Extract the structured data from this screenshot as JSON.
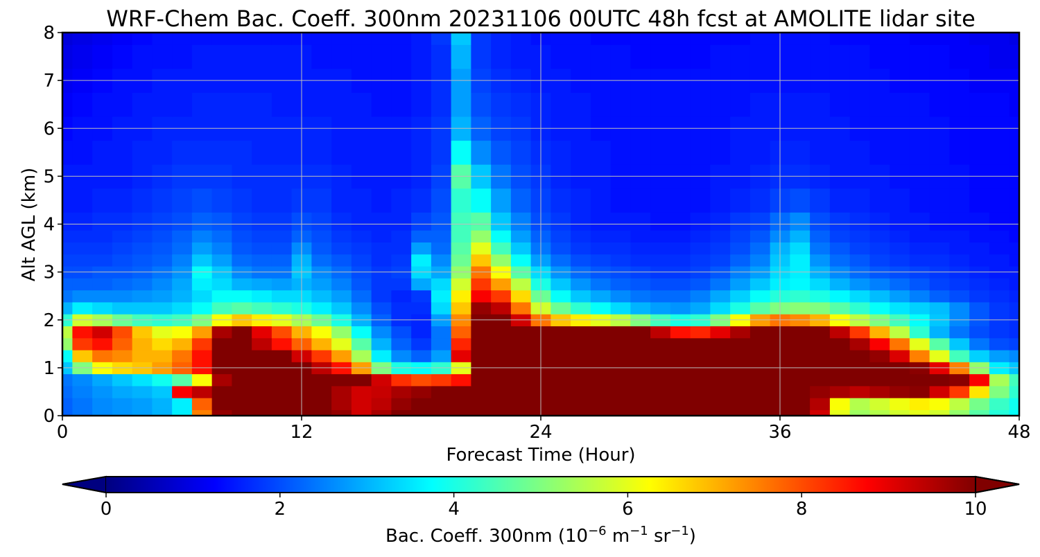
{
  "chart_data": {
    "type": "heatmap",
    "title": "WRF-Chem Bac. Coeff. 300nm  20231106 00UTC 48h fcst at AMOLITE lidar site",
    "xlabel": "Forecast Time (Hour)",
    "ylabel": "Alt AGL (km)",
    "xlim": [
      0,
      48
    ],
    "ylim": [
      0,
      8
    ],
    "xticks": [
      0,
      12,
      24,
      36,
      48
    ],
    "yticks": [
      0,
      1,
      2,
      3,
      4,
      5,
      6,
      7,
      8
    ],
    "grid": true,
    "colormap": "jet",
    "colorbar": {
      "label_main": "Bac. Coeff. 300nm  (10",
      "label_exp1": "−6",
      "label_mid": " m",
      "label_exp2": "−1",
      "label_mid2": " sr",
      "label_exp3": "−1",
      "label_end": ")",
      "orientation": "horizontal",
      "extend": "both",
      "range": [
        0,
        10
      ],
      "ticks": [
        0,
        2,
        4,
        6,
        8,
        10
      ]
    },
    "x": [
      0,
      1,
      2,
      3,
      4,
      5,
      6,
      7,
      8,
      9,
      10,
      11,
      12,
      13,
      14,
      15,
      16,
      17,
      18,
      19,
      20,
      21,
      22,
      23,
      24,
      25,
      26,
      27,
      28,
      29,
      30,
      31,
      32,
      33,
      34,
      35,
      36,
      37,
      38,
      39,
      40,
      41,
      42,
      43,
      44,
      45,
      46,
      47,
      48
    ],
    "y": [
      0,
      0.25,
      0.5,
      0.75,
      1,
      1.25,
      1.5,
      1.75,
      2,
      2.25,
      2.5,
      2.75,
      3,
      3.25,
      3.5,
      3.75,
      4,
      4.5,
      5,
      5.5,
      6,
      6.5,
      7,
      7.5,
      8
    ],
    "z": [
      [
        2.2,
        2.4,
        2.6,
        2.7,
        2.8,
        3.0,
        3.6,
        7.5,
        9.8,
        10,
        10,
        10,
        10,
        10,
        9.8,
        9.2,
        9.6,
        10,
        10,
        10,
        10,
        10,
        10,
        10,
        10,
        10,
        10,
        10,
        10,
        10,
        10,
        10,
        10,
        10,
        10,
        10,
        10,
        10,
        9.2,
        6.0,
        5.3,
        5.5,
        5.8,
        6.0,
        5.8,
        5.2,
        4.6,
        4.1,
        3.8
      ],
      [
        2.2,
        2.4,
        2.6,
        2.7,
        2.8,
        3.0,
        3.6,
        7.8,
        10,
        10,
        10,
        10,
        10,
        10,
        9.6,
        9.2,
        9.4,
        9.8,
        10,
        10,
        10,
        10,
        10,
        10,
        10,
        10,
        10,
        10,
        10,
        10,
        10,
        10,
        10,
        10,
        10,
        10,
        10,
        10,
        9.5,
        6.2,
        5.5,
        5.8,
        6.1,
        6.4,
        6.2,
        5.6,
        4.9,
        4.3,
        3.9
      ],
      [
        2.3,
        2.5,
        2.7,
        2.9,
        3.0,
        3.2,
        8.8,
        9.4,
        10,
        10,
        10,
        10,
        10,
        10,
        9.6,
        9.2,
        9.3,
        9.6,
        9.8,
        10,
        10,
        10,
        10,
        10,
        10,
        10,
        10,
        10,
        10,
        10,
        10,
        10,
        10,
        10,
        10,
        10,
        10,
        10,
        9.8,
        9.6,
        9.4,
        9.6,
        9.8,
        9.9,
        9.2,
        8.2,
        6.5,
        5.0,
        4.2
      ],
      [
        2.4,
        2.6,
        2.9,
        3.2,
        3.5,
        3.9,
        4.6,
        6.2,
        9.6,
        10,
        10,
        10,
        10,
        10,
        10,
        10,
        9.2,
        8.3,
        8.0,
        8.2,
        8.6,
        10,
        10,
        10,
        10,
        10,
        10,
        10,
        10,
        10,
        10,
        10,
        10,
        10,
        10,
        10,
        10,
        10,
        10,
        10,
        10,
        10,
        10,
        10,
        10,
        9.9,
        8.8,
        5.4,
        4.4
      ],
      [
        3.2,
        5.0,
        6.2,
        6.6,
        6.8,
        7.2,
        7.8,
        8.6,
        10,
        10,
        10,
        10,
        10,
        9.4,
        8.6,
        7.2,
        5.0,
        4.0,
        3.8,
        4.2,
        6.0,
        10,
        10,
        10,
        10,
        10,
        10,
        10,
        10,
        10,
        10,
        10,
        10,
        10,
        10,
        10,
        10,
        10,
        10,
        10,
        10,
        10,
        10,
        9.9,
        9.0,
        7.5,
        5.2,
        3.6,
        3.2
      ],
      [
        3.8,
        6.8,
        7.6,
        7.4,
        7.0,
        7.0,
        7.6,
        8.6,
        10,
        10,
        10,
        10,
        9.2,
        8.2,
        7.2,
        5.4,
        3.6,
        2.6,
        2.2,
        2.8,
        9.0,
        10,
        10,
        10,
        10,
        10,
        10,
        10,
        10,
        10,
        10,
        10,
        10,
        10,
        10,
        10,
        10,
        10,
        10,
        10,
        10,
        9.8,
        9.1,
        7.5,
        6.0,
        4.4,
        3.3,
        2.8,
        2.6
      ],
      [
        5.2,
        8.2,
        8.6,
        7.8,
        7.0,
        6.6,
        7.0,
        8.2,
        10,
        10,
        9.4,
        8.6,
        7.8,
        7.0,
        6.0,
        4.6,
        3.0,
        2.2,
        1.8,
        2.4,
        8.4,
        10,
        10,
        10,
        10,
        10,
        10,
        10,
        10,
        10,
        10,
        10,
        10,
        10,
        10,
        10,
        10,
        10,
        10,
        10,
        9.6,
        8.8,
        7.6,
        6.0,
        4.6,
        3.2,
        2.4,
        2.0,
        1.9
      ],
      [
        5.6,
        8.6,
        9.2,
        8.0,
        6.8,
        6.0,
        6.2,
        7.2,
        9.6,
        10,
        9.0,
        8.0,
        7.0,
        6.2,
        5.2,
        3.8,
        2.6,
        2.0,
        1.6,
        2.4,
        7.8,
        10,
        10,
        10,
        10,
        10,
        10,
        10,
        10,
        10,
        9.4,
        8.6,
        8.4,
        9.0,
        9.6,
        10,
        10,
        10,
        10,
        9.4,
        8.2,
        7.0,
        5.6,
        4.2,
        3.0,
        2.4,
        2.0,
        1.8,
        1.7
      ],
      [
        4.2,
        5.8,
        5.4,
        4.8,
        4.4,
        4.2,
        4.4,
        5.0,
        6.2,
        6.8,
        6.4,
        6.0,
        5.4,
        4.8,
        4.0,
        3.0,
        2.2,
        1.7,
        1.6,
        2.8,
        7.4,
        10,
        10,
        9.2,
        7.6,
        6.8,
        6.4,
        6.0,
        5.6,
        5.0,
        4.4,
        4.0,
        4.2,
        5.0,
        6.2,
        7.2,
        7.6,
        7.4,
        7.0,
        6.2,
        5.6,
        5.0,
        4.4,
        3.8,
        3.2,
        2.6,
        2.1,
        1.8,
        1.7
      ],
      [
        3.0,
        3.6,
        3.4,
        3.2,
        3.2,
        3.2,
        3.4,
        3.8,
        4.4,
        4.6,
        4.4,
        4.2,
        4.0,
        3.6,
        3.2,
        2.6,
        2.0,
        1.7,
        1.7,
        3.4,
        6.8,
        9.8,
        9.4,
        7.6,
        5.8,
        4.8,
        4.2,
        3.8,
        3.4,
        3.0,
        2.8,
        2.7,
        2.9,
        3.4,
        4.0,
        4.6,
        5.0,
        5.1,
        5.0,
        4.6,
        4.2,
        3.8,
        3.5,
        3.3,
        3.1,
        2.6,
        2.1,
        1.8,
        1.7
      ],
      [
        2.4,
        2.6,
        2.6,
        2.6,
        2.7,
        2.8,
        3.0,
        3.4,
        3.8,
        3.8,
        3.6,
        3.4,
        3.4,
        3.1,
        2.8,
        2.3,
        1.8,
        1.6,
        1.8,
        3.6,
        6.4,
        8.8,
        8.2,
        6.6,
        4.8,
        3.8,
        3.2,
        2.9,
        2.6,
        2.4,
        2.3,
        2.3,
        2.5,
        2.9,
        3.3,
        3.8,
        4.1,
        4.2,
        4.0,
        3.7,
        3.4,
        3.1,
        2.8,
        2.5,
        2.2,
        2.0,
        1.8,
        1.7,
        1.6
      ],
      [
        2.2,
        2.2,
        2.2,
        2.3,
        2.4,
        2.6,
        2.9,
        3.6,
        3.4,
        3.0,
        2.9,
        2.8,
        3.0,
        2.8,
        2.5,
        2.1,
        1.8,
        1.8,
        2.9,
        3.4,
        5.8,
        8.2,
        7.2,
        5.6,
        4.0,
        3.2,
        2.7,
        2.4,
        2.2,
        2.1,
        2.0,
        2.0,
        2.1,
        2.4,
        2.8,
        3.2,
        3.6,
        3.7,
        3.4,
        3.0,
        2.7,
        2.5,
        2.3,
        2.1,
        1.9,
        1.8,
        1.7,
        1.6,
        1.5
      ],
      [
        2.0,
        2.0,
        2.1,
        2.1,
        2.2,
        2.4,
        2.7,
        3.8,
        3.2,
        2.6,
        2.4,
        2.4,
        3.2,
        2.6,
        2.3,
        2.0,
        1.8,
        1.9,
        3.4,
        2.9,
        5.2,
        7.6,
        6.2,
        4.6,
        3.4,
        2.7,
        2.3,
        2.1,
        2.0,
        1.9,
        1.8,
        1.8,
        1.9,
        2.1,
        2.5,
        2.8,
        3.4,
        3.6,
        3.0,
        2.6,
        2.3,
        2.1,
        2.0,
        1.9,
        1.8,
        1.7,
        1.6,
        1.5,
        1.5
      ],
      [
        1.9,
        1.9,
        1.9,
        2.0,
        2.1,
        2.2,
        2.5,
        3.2,
        2.8,
        2.3,
        2.2,
        2.2,
        3.0,
        2.3,
        2.1,
        1.9,
        1.7,
        1.8,
        3.6,
        2.6,
        4.8,
        6.8,
        5.2,
        3.8,
        2.8,
        2.3,
        2.0,
        1.9,
        1.8,
        1.7,
        1.7,
        1.7,
        1.8,
        1.9,
        2.2,
        2.5,
        3.2,
        3.6,
        2.7,
        2.3,
        2.1,
        1.9,
        1.8,
        1.7,
        1.7,
        1.6,
        1.5,
        1.5,
        1.4
      ],
      [
        1.8,
        1.8,
        1.8,
        1.9,
        2.0,
        2.1,
        2.3,
        2.8,
        2.5,
        2.1,
        2.0,
        2.0,
        2.6,
        2.1,
        1.9,
        1.8,
        1.7,
        1.7,
        2.8,
        2.3,
        4.6,
        6.0,
        4.4,
        3.2,
        2.4,
        2.0,
        1.8,
        1.7,
        1.7,
        1.6,
        1.6,
        1.6,
        1.7,
        1.8,
        2.0,
        2.3,
        3.0,
        3.4,
        2.4,
        2.1,
        1.9,
        1.8,
        1.7,
        1.6,
        1.6,
        1.5,
        1.5,
        1.4,
        1.4
      ],
      [
        1.7,
        1.7,
        1.7,
        1.8,
        1.9,
        2.0,
        2.2,
        2.5,
        2.3,
        2.0,
        1.9,
        1.9,
        2.2,
        2.0,
        1.8,
        1.7,
        1.6,
        1.7,
        2.2,
        2.2,
        4.4,
        5.2,
        3.8,
        2.8,
        2.2,
        1.9,
        1.7,
        1.6,
        1.6,
        1.5,
        1.5,
        1.5,
        1.6,
        1.7,
        1.9,
        2.1,
        2.6,
        3.0,
        2.2,
        1.9,
        1.8,
        1.7,
        1.6,
        1.5,
        1.5,
        1.5,
        1.4,
        1.4,
        1.3
      ],
      [
        1.6,
        1.6,
        1.7,
        1.7,
        1.8,
        1.9,
        2.0,
        2.2,
        2.1,
        1.9,
        1.8,
        1.8,
        2.0,
        1.9,
        1.7,
        1.6,
        1.6,
        1.6,
        1.9,
        2.1,
        4.4,
        4.6,
        3.2,
        2.5,
        2.0,
        1.8,
        1.6,
        1.5,
        1.5,
        1.5,
        1.4,
        1.4,
        1.5,
        1.6,
        1.8,
        1.9,
        2.3,
        2.6,
        2.0,
        1.8,
        1.7,
        1.6,
        1.5,
        1.5,
        1.4,
        1.4,
        1.4,
        1.3,
        1.3
      ],
      [
        1.5,
        1.5,
        1.6,
        1.6,
        1.7,
        1.8,
        1.9,
        2.0,
        1.9,
        1.8,
        1.7,
        1.7,
        1.8,
        1.8,
        1.6,
        1.6,
        1.5,
        1.6,
        1.7,
        2.0,
        4.2,
        3.8,
        2.8,
        2.2,
        1.9,
        1.7,
        1.6,
        1.5,
        1.4,
        1.4,
        1.4,
        1.4,
        1.4,
        1.5,
        1.6,
        1.7,
        1.9,
        2.0,
        1.8,
        1.6,
        1.6,
        1.5,
        1.5,
        1.4,
        1.4,
        1.4,
        1.3,
        1.3,
        1.3
      ],
      [
        1.5,
        1.5,
        1.5,
        1.5,
        1.6,
        1.7,
        1.8,
        1.8,
        1.8,
        1.7,
        1.7,
        1.7,
        1.7,
        1.7,
        1.6,
        1.5,
        1.5,
        1.5,
        1.6,
        1.9,
        4.6,
        3.2,
        2.4,
        2.0,
        1.8,
        1.6,
        1.5,
        1.5,
        1.4,
        1.4,
        1.4,
        1.4,
        1.4,
        1.5,
        1.5,
        1.6,
        1.7,
        1.7,
        1.6,
        1.5,
        1.5,
        1.5,
        1.4,
        1.4,
        1.4,
        1.4,
        1.3,
        1.3,
        1.3
      ],
      [
        1.4,
        1.4,
        1.5,
        1.5,
        1.6,
        1.6,
        1.7,
        1.7,
        1.7,
        1.7,
        1.6,
        1.6,
        1.6,
        1.6,
        1.5,
        1.5,
        1.5,
        1.5,
        1.6,
        1.8,
        3.8,
        2.6,
        2.1,
        1.9,
        1.7,
        1.6,
        1.5,
        1.5,
        1.4,
        1.4,
        1.4,
        1.4,
        1.4,
        1.4,
        1.5,
        1.5,
        1.6,
        1.6,
        1.5,
        1.5,
        1.5,
        1.4,
        1.4,
        1.4,
        1.4,
        1.3,
        1.3,
        1.3,
        1.3
      ],
      [
        1.3,
        1.4,
        1.4,
        1.5,
        1.5,
        1.6,
        1.6,
        1.6,
        1.6,
        1.6,
        1.6,
        1.6,
        1.6,
        1.6,
        1.5,
        1.5,
        1.5,
        1.5,
        1.6,
        1.8,
        3.0,
        2.2,
        1.9,
        1.8,
        1.6,
        1.5,
        1.5,
        1.4,
        1.4,
        1.4,
        1.4,
        1.4,
        1.4,
        1.4,
        1.5,
        1.5,
        1.5,
        1.5,
        1.5,
        1.5,
        1.4,
        1.4,
        1.4,
        1.4,
        1.4,
        1.3,
        1.3,
        1.3,
        1.3
      ],
      [
        1.2,
        1.3,
        1.4,
        1.4,
        1.5,
        1.5,
        1.5,
        1.6,
        1.6,
        1.6,
        1.6,
        1.5,
        1.5,
        1.5,
        1.5,
        1.5,
        1.4,
        1.4,
        1.5,
        1.7,
        2.8,
        2.0,
        1.8,
        1.7,
        1.6,
        1.5,
        1.5,
        1.4,
        1.4,
        1.4,
        1.4,
        1.4,
        1.4,
        1.4,
        1.4,
        1.5,
        1.5,
        1.5,
        1.5,
        1.4,
        1.4,
        1.4,
        1.4,
        1.4,
        1.3,
        1.3,
        1.3,
        1.3,
        1.2
      ],
      [
        1.1,
        1.2,
        1.3,
        1.4,
        1.4,
        1.5,
        1.5,
        1.5,
        1.5,
        1.5,
        1.5,
        1.5,
        1.5,
        1.5,
        1.5,
        1.4,
        1.4,
        1.4,
        1.5,
        1.7,
        2.8,
        1.9,
        1.7,
        1.6,
        1.5,
        1.5,
        1.4,
        1.4,
        1.4,
        1.4,
        1.4,
        1.4,
        1.4,
        1.4,
        1.4,
        1.4,
        1.4,
        1.4,
        1.4,
        1.4,
        1.4,
        1.4,
        1.3,
        1.3,
        1.3,
        1.3,
        1.2,
        1.2,
        1.2
      ],
      [
        1.0,
        1.1,
        1.2,
        1.3,
        1.4,
        1.4,
        1.4,
        1.5,
        1.5,
        1.5,
        1.5,
        1.5,
        1.5,
        1.4,
        1.4,
        1.4,
        1.4,
        1.4,
        1.5,
        1.7,
        3.0,
        1.8,
        1.6,
        1.5,
        1.5,
        1.4,
        1.4,
        1.4,
        1.4,
        1.3,
        1.3,
        1.3,
        1.3,
        1.4,
        1.4,
        1.4,
        1.4,
        1.4,
        1.4,
        1.4,
        1.4,
        1.3,
        1.3,
        1.3,
        1.3,
        1.2,
        1.2,
        1.1,
        1.1
      ],
      [
        0.9,
        1.0,
        1.1,
        1.2,
        1.3,
        1.4,
        1.4,
        1.4,
        1.4,
        1.4,
        1.4,
        1.4,
        1.4,
        1.4,
        1.4,
        1.4,
        1.4,
        1.4,
        1.5,
        1.8,
        3.2,
        1.8,
        1.6,
        1.5,
        1.4,
        1.4,
        1.4,
        1.3,
        1.3,
        1.3,
        1.3,
        1.3,
        1.3,
        1.3,
        1.3,
        1.4,
        1.4,
        1.4,
        1.4,
        1.3,
        1.3,
        1.3,
        1.3,
        1.2,
        1.2,
        1.2,
        1.1,
        1.1,
        1.0
      ]
    ]
  }
}
